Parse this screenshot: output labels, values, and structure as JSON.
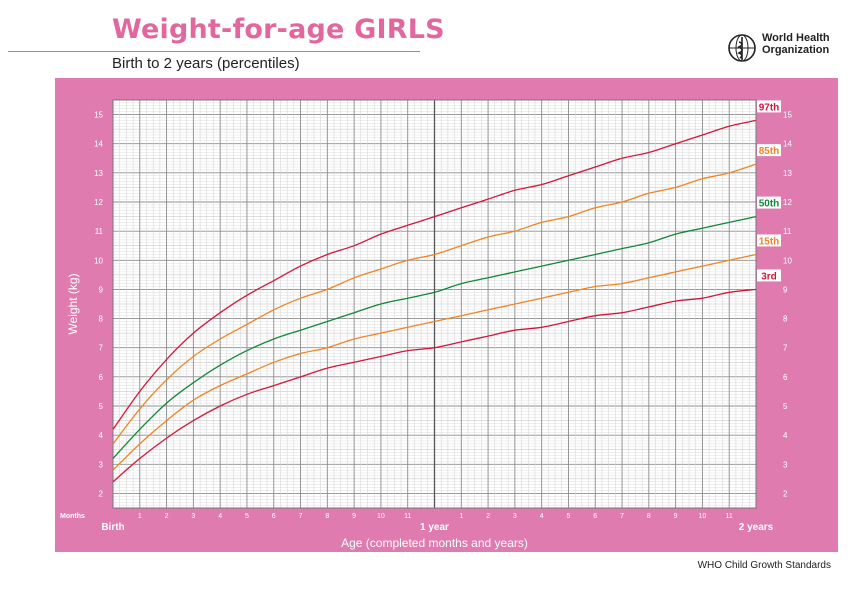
{
  "header": {
    "title": "Weight-for-age GIRLS",
    "subtitle": "Birth to 2 years (percentiles)",
    "org_line1": "World Health",
    "org_line2": "Organization",
    "logo_icon": "who-emblem-icon"
  },
  "footer": {
    "text": "WHO Child Growth Standards"
  },
  "colors": {
    "brand_pink": "#e2679f",
    "frame_pink": "#e07bb0",
    "grid": "#b9b9b9",
    "p97": "#d4163a",
    "p85": "#f08423",
    "p50": "#10883a",
    "p15": "#f08423",
    "p3": "#d4163a"
  },
  "chart_data": {
    "type": "line",
    "title": "Weight-for-age GIRLS",
    "subtitle": "Birth to 2 years (percentiles)",
    "xlabel": "Age (completed months and years)",
    "ylabel": "Weight (kg)",
    "xlim": [
      0,
      24
    ],
    "ylim": [
      1.5,
      15.5
    ],
    "months_label": "Months",
    "x_major_labels": [
      {
        "month": 0,
        "label": "Birth"
      },
      {
        "month": 12,
        "label": "1 year"
      },
      {
        "month": 24,
        "label": "2 years"
      }
    ],
    "x_minor_labels": [
      "1",
      "2",
      "3",
      "4",
      "5",
      "6",
      "7",
      "8",
      "9",
      "10",
      "11",
      "1",
      "2",
      "3",
      "4",
      "5",
      "6",
      "7",
      "8",
      "9",
      "10",
      "11"
    ],
    "y_ticks": [
      2,
      3,
      4,
      5,
      6,
      7,
      8,
      9,
      10,
      11,
      12,
      13,
      14,
      15
    ],
    "grid": true,
    "series": [
      {
        "name": "97th",
        "color": "#d4163a",
        "x": [
          0,
          1,
          2,
          3,
          4,
          5,
          6,
          7,
          8,
          9,
          10,
          11,
          12,
          13,
          14,
          15,
          16,
          17,
          18,
          19,
          20,
          21,
          22,
          23,
          24
        ],
        "values": [
          4.2,
          5.5,
          6.6,
          7.5,
          8.2,
          8.8,
          9.3,
          9.8,
          10.2,
          10.5,
          10.9,
          11.2,
          11.5,
          11.8,
          12.1,
          12.4,
          12.6,
          12.9,
          13.2,
          13.5,
          13.7,
          14.0,
          14.3,
          14.6,
          14.8
        ]
      },
      {
        "name": "85th",
        "color": "#f08423",
        "x": [
          0,
          1,
          2,
          3,
          4,
          5,
          6,
          7,
          8,
          9,
          10,
          11,
          12,
          13,
          14,
          15,
          16,
          17,
          18,
          19,
          20,
          21,
          22,
          23,
          24
        ],
        "values": [
          3.7,
          4.9,
          5.9,
          6.7,
          7.3,
          7.8,
          8.3,
          8.7,
          9.0,
          9.4,
          9.7,
          10.0,
          10.2,
          10.5,
          10.8,
          11.0,
          11.3,
          11.5,
          11.8,
          12.0,
          12.3,
          12.5,
          12.8,
          13.0,
          13.3
        ]
      },
      {
        "name": "50th",
        "color": "#10883a",
        "x": [
          0,
          1,
          2,
          3,
          4,
          5,
          6,
          7,
          8,
          9,
          10,
          11,
          12,
          13,
          14,
          15,
          16,
          17,
          18,
          19,
          20,
          21,
          22,
          23,
          24
        ],
        "values": [
          3.2,
          4.2,
          5.1,
          5.8,
          6.4,
          6.9,
          7.3,
          7.6,
          7.9,
          8.2,
          8.5,
          8.7,
          8.9,
          9.2,
          9.4,
          9.6,
          9.8,
          10.0,
          10.2,
          10.4,
          10.6,
          10.9,
          11.1,
          11.3,
          11.5
        ]
      },
      {
        "name": "15th",
        "color": "#f08423",
        "x": [
          0,
          1,
          2,
          3,
          4,
          5,
          6,
          7,
          8,
          9,
          10,
          11,
          12,
          13,
          14,
          15,
          16,
          17,
          18,
          19,
          20,
          21,
          22,
          23,
          24
        ],
        "values": [
          2.8,
          3.7,
          4.5,
          5.2,
          5.7,
          6.1,
          6.5,
          6.8,
          7.0,
          7.3,
          7.5,
          7.7,
          7.9,
          8.1,
          8.3,
          8.5,
          8.7,
          8.9,
          9.1,
          9.2,
          9.4,
          9.6,
          9.8,
          10.0,
          10.2
        ]
      },
      {
        "name": "3rd",
        "color": "#d4163a",
        "x": [
          0,
          1,
          2,
          3,
          4,
          5,
          6,
          7,
          8,
          9,
          10,
          11,
          12,
          13,
          14,
          15,
          16,
          17,
          18,
          19,
          20,
          21,
          22,
          23,
          24
        ],
        "values": [
          2.4,
          3.2,
          3.9,
          4.5,
          5.0,
          5.4,
          5.7,
          6.0,
          6.3,
          6.5,
          6.7,
          6.9,
          7.0,
          7.2,
          7.4,
          7.6,
          7.7,
          7.9,
          8.1,
          8.2,
          8.4,
          8.6,
          8.7,
          8.9,
          9.0
        ]
      }
    ]
  }
}
